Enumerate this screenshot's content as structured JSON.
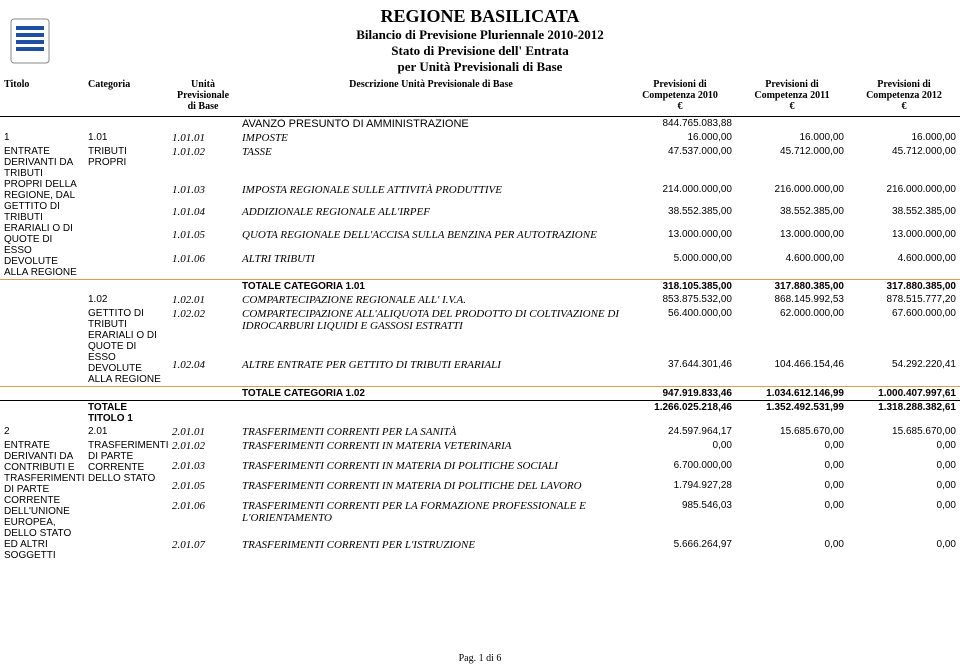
{
  "header": {
    "title": "REGIONE BASILICATA",
    "sub1": "Bilancio di Previsione Pluriennale 2010-2012",
    "sub2": "Stato di Previsione dell' Entrata",
    "sub3": "per Unità Previsionali di Base"
  },
  "columns": {
    "titolo": "Titolo",
    "categoria": "Categoria",
    "upb": "Unità Previsionale di Base",
    "desc": "Descrizione Unità Previsionale di Base",
    "p10a": "Previsioni di",
    "p10b": "Competenza 2010",
    "euro": "€",
    "p11a": "Previsioni di",
    "p11b": "Competenza 2011",
    "p12a": "Previsioni di",
    "p12b": "Competenza 2012"
  },
  "rows": [
    {
      "t": "",
      "c": "",
      "u": "",
      "d": "AVANZO PRESUNTO DI AMMINISTRAZIONE",
      "p10": "844.765.083,88",
      "p11": "",
      "p12": "",
      "sty": [
        "bold-desc",
        "sans-desc"
      ]
    },
    {
      "t": "1",
      "c": "1.01",
      "u": "1.01.01",
      "d": "IMPOSTE",
      "p10": "16.000,00",
      "p11": "16.000,00",
      "p12": "16.000,00",
      "sty": [
        "ital-u",
        "ital-d",
        "sans-t"
      ]
    },
    {
      "t": "ENTRATE DERIVANTI DA TRIBUTI PROPRI DELLA REGIONE, DAL GETTITO DI TRIBUTI ERARIALI O DI QUOTE DI ESSO DEVOLUTE ALLA REGIONE",
      "c": "TRIBUTI PROPRI",
      "u": "1.01.02",
      "d": "TASSE",
      "p10": "47.537.000,00",
      "p11": "45.712.000,00",
      "p12": "45.712.000,00",
      "sty": [
        "row-desc",
        "ital-u",
        "ital-d",
        "sans-t"
      ],
      "tRowspan": 5
    },
    {
      "t": "",
      "c": "",
      "u": "1.01.03",
      "d": "IMPOSTA REGIONALE SULLE ATTIVITÀ PRODUTTIVE",
      "p10": "214.000.000,00",
      "p11": "216.000.000,00",
      "p12": "216.000.000,00",
      "sty": [
        "ital-u",
        "ital-d"
      ]
    },
    {
      "t": "",
      "c": "",
      "u": "1.01.04",
      "d": "ADDIZIONALE REGIONALE ALL'IRPEF",
      "p10": "38.552.385,00",
      "p11": "38.552.385,00",
      "p12": "38.552.385,00",
      "sty": [
        "ital-u",
        "ital-d"
      ]
    },
    {
      "t": "",
      "c": "",
      "u": "1.01.05",
      "d": "QUOTA REGIONALE DELL'ACCISA SULLA BENZINA PER AUTOTRAZIONE",
      "p10": "13.000.000,00",
      "p11": "13.000.000,00",
      "p12": "13.000.000,00",
      "sty": [
        "ital-u",
        "ital-d"
      ]
    },
    {
      "t": "",
      "c": "",
      "u": "1.01.06",
      "d": "ALTRI TRIBUTI",
      "p10": "5.000.000,00",
      "p11": "4.600.000,00",
      "p12": "4.600.000,00",
      "sty": [
        "spacer",
        "ital-u",
        "ital-d"
      ]
    },
    {
      "t": "",
      "c": "",
      "u": "",
      "d": "TOTALE CATEGORIA 1.01",
      "p10": "318.105.385,00",
      "p11": "317.880.385,00",
      "p12": "317.880.385,00",
      "sty": [
        "tot",
        "orange"
      ]
    },
    {
      "t": "",
      "c": "1.02",
      "u": "1.02.01",
      "d": "COMPARTECIPAZIONE REGIONALE ALL' I.V.A.",
      "p10": "853.875.532,00",
      "p11": "868.145.992,53",
      "p12": "878.515.777,20",
      "sty": [
        "ital-u",
        "ital-d",
        "sans-t"
      ]
    },
    {
      "t": "",
      "c": "GETTITO DI TRIBUTI ERARIALI O DI QUOTE DI ESSO DEVOLUTE ALLA REGIONE",
      "u": "1.02.02",
      "d": "COMPARTECIPAZIONE ALL'ALIQUOTA DEL PRODOTTO DI COLTIVAZIONE DI IDROCARBURI LIQUIDI E GASSOSI ESTRATTI",
      "p10": "56.400.000,00",
      "p11": "62.000.000,00",
      "p12": "67.600.000,00",
      "sty": [
        "ital-u",
        "ital-d",
        "sans-t"
      ],
      "cRowspan": 2
    },
    {
      "t": "",
      "c": "",
      "u": "1.02.04",
      "d": "ALTRE ENTRATE PER GETTITO DI TRIBUTI ERARIALI",
      "p10": "37.644.301,46",
      "p11": "104.466.154,46",
      "p12": "54.292.220,41",
      "sty": [
        "ital-u",
        "ital-d"
      ]
    },
    {
      "t": "",
      "c": "",
      "u": "",
      "d": "TOTALE CATEGORIA 1.02",
      "p10": "947.919.833,46",
      "p11": "1.034.612.146,99",
      "p12": "1.000.407.997,61",
      "sty": [
        "tot",
        "orange",
        "spacer-top"
      ]
    },
    {
      "t": "",
      "c": "TOTALE TITOLO 1",
      "u": "",
      "d": "",
      "p10": "1.266.025.218,46",
      "p11": "1.352.492.531,99",
      "p12": "1.318.288.382,61",
      "sty": [
        "tot",
        "black",
        "tot-titolo"
      ]
    },
    {
      "t": "2",
      "c": "2.01",
      "u": "2.01.01",
      "d": "TRASFERIMENTI CORRENTI PER LA SANITÀ",
      "p10": "24.597.964,17",
      "p11": "15.685.670,00",
      "p12": "15.685.670,00",
      "sty": [
        "ital-u",
        "ital-d",
        "sans-t"
      ]
    },
    {
      "t": "ENTRATE DERIVANTI DA CONTRIBUTI E TRASFERIMENTI DI PARTE CORRENTE DELL'UNIONE EUROPEA, DELLO STATO ED ALTRI SOGGETTI",
      "c": "TRASFERIMENTI DI PARTE CORRENTE DELLO STATO",
      "u": "2.01.02",
      "d": "TRASFERIMENTI CORRENTI IN MATERIA VETERINARIA",
      "p10": "0,00",
      "p11": "0,00",
      "p12": "0,00",
      "sty": [
        "row-desc",
        "ital-u",
        "ital-d",
        "sans-t"
      ],
      "tRowspan": 6,
      "cRowspan": 6
    },
    {
      "t": "",
      "c": "",
      "u": "2.01.03",
      "d": "TRASFERIMENTI CORRENTI IN MATERIA DI POLITICHE SOCIALI",
      "p10": "6.700.000,00",
      "p11": "0,00",
      "p12": "0,00",
      "sty": [
        "ital-u",
        "ital-d"
      ]
    },
    {
      "t": "",
      "c": "",
      "u": "2.01.05",
      "d": "TRASFERIMENTI CORRENTI IN MATERIA DI POLITICHE DEL LAVORO",
      "p10": "1.794.927,28",
      "p11": "0,00",
      "p12": "0,00",
      "sty": [
        "ital-u",
        "ital-d"
      ]
    },
    {
      "t": "",
      "c": "",
      "u": "2.01.06",
      "d": "TRASFERIMENTI CORRENTI PER LA FORMAZIONE PROFESSIONALE E L'ORIENTAMENTO",
      "p10": "985.546,03",
      "p11": "0,00",
      "p12": "0,00",
      "sty": [
        "ital-u",
        "ital-d"
      ]
    },
    {
      "t": "",
      "c": "",
      "u": "2.01.07",
      "d": "TRASFERIMENTI CORRENTI PER L'ISTRUZIONE",
      "p10": "5.666.264,97",
      "p11": "0,00",
      "p12": "0,00",
      "sty": [
        "spacer",
        "ital-u",
        "ital-d"
      ]
    }
  ],
  "footer": "Pag. 1 di 6",
  "logo_colors": {
    "blue": "#1e4fa3",
    "border": "#888"
  }
}
